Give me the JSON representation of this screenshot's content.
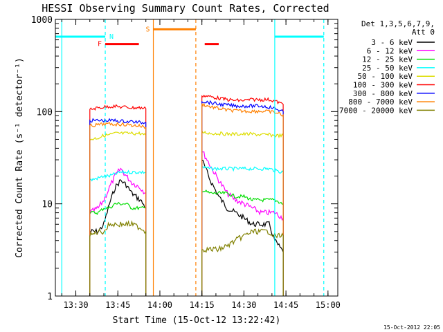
{
  "chart_data": {
    "type": "line",
    "title": "HESSI Observing Summary Count Rates, Corrected",
    "xlabel": "Start Time (15-Oct-12 13:22:42)",
    "ylabel": "Corrected Count Rate (s⁻¹ detector⁻¹)",
    "timestamp": "15-Oct-2012 22:05",
    "yscale": "log",
    "ylim": [
      1,
      1000
    ],
    "xlim": [
      "13:22:42",
      "15:03:30"
    ],
    "x_ticks": [
      "13:30",
      "13:45",
      "14:00",
      "14:15",
      "14:30",
      "14:45",
      "15:00"
    ],
    "y_ticks": [
      "1",
      "10",
      "100",
      "1000"
    ],
    "legend": {
      "placement": "right",
      "header": [
        "Det 1,3,5,6,7,9,",
        "Att 0"
      ],
      "entries": [
        {
          "label": "3 - 6 keV",
          "color": "#000000"
        },
        {
          "label": "6 - 12 keV",
          "color": "#ff00ff"
        },
        {
          "label": "12 - 25 keV",
          "color": "#00dd00"
        },
        {
          "label": "25 - 50 keV",
          "color": "#00ffff"
        },
        {
          "label": "50 - 100 keV",
          "color": "#dddd00"
        },
        {
          "label": "100 - 300 keV",
          "color": "#ff0000"
        },
        {
          "label": "300 - 800 keV",
          "color": "#0000ff"
        },
        {
          "label": "800 - 7000 keV",
          "color": "#ff8000"
        },
        {
          "label": "7000 - 20000 keV",
          "color": "#808000"
        }
      ]
    },
    "flag_bars": [
      {
        "label": "N",
        "color": "#00ffff",
        "y": 650,
        "spans": [
          [
            "13:22:42",
            "13:40:30"
          ],
          [
            "14:41:00",
            "14:58:30"
          ]
        ]
      },
      {
        "label": "S",
        "color": "#ff8000",
        "y": 780,
        "spans": [
          [
            "13:57:40",
            "14:12:50"
          ]
        ]
      },
      {
        "label": "F",
        "color": "#ff0000",
        "y": 540,
        "spans": [
          [
            "13:40:30",
            "13:52:30"
          ],
          [
            "14:16:00",
            "14:21:00"
          ]
        ]
      }
    ],
    "vertical_lines": [
      {
        "t": "13:25:00",
        "color": "#00ffff",
        "style": "solid"
      },
      {
        "t": "13:40:30",
        "color": "#00ffff",
        "style": "dashed"
      },
      {
        "t": "14:41:00",
        "color": "#00ffff",
        "style": "solid"
      },
      {
        "t": "14:58:30",
        "color": "#00ffff",
        "style": "dashed"
      },
      {
        "t": "13:57:40",
        "color": "#ff8000",
        "style": "solid"
      },
      {
        "t": "14:12:50",
        "color": "#ff8000",
        "style": "dashed"
      }
    ],
    "segments": [
      [
        "13:35:00",
        "13:55:00"
      ],
      [
        "14:15:00",
        "14:44:00"
      ]
    ],
    "series": [
      {
        "name": "3 - 6 keV",
        "color": "#000000",
        "points": [
          [
            [
              "13:35:00",
              5
            ],
            [
              "13:38:00",
              5
            ],
            [
              "13:40:00",
              6
            ],
            [
              "13:42:00",
              10
            ],
            [
              "13:44:00",
              15
            ],
            [
              "13:46:00",
              18
            ],
            [
              "13:48:00",
              16
            ],
            [
              "13:50:00",
              13
            ],
            [
              "13:53:00",
              11
            ],
            [
              "13:55:00",
              9
            ]
          ],
          [
            [
              "14:15:00",
              30
            ],
            [
              "14:18:00",
              18
            ],
            [
              "14:21:00",
              12
            ],
            [
              "14:24:00",
              9
            ],
            [
              "14:27:00",
              8
            ],
            [
              "14:30:00",
              7
            ],
            [
              "14:33:00",
              6
            ],
            [
              "14:36:00",
              6
            ],
            [
              "14:39:00",
              6
            ],
            [
              "14:41:00",
              4
            ],
            [
              "14:44:00",
              3
            ]
          ]
        ]
      },
      {
        "name": "6 - 12 keV",
        "color": "#ff00ff",
        "points": [
          [
            [
              "13:35:00",
              8
            ],
            [
              "13:38:00",
              9
            ],
            [
              "13:40:00",
              11
            ],
            [
              "13:42:00",
              15
            ],
            [
              "13:44:00",
              20
            ],
            [
              "13:46:00",
              24
            ],
            [
              "13:48:00",
              20
            ],
            [
              "13:50:00",
              17
            ],
            [
              "13:53:00",
              15
            ],
            [
              "13:55:00",
              13
            ]
          ],
          [
            [
              "14:15:00",
              38
            ],
            [
              "14:18:00",
              26
            ],
            [
              "14:21:00",
              18
            ],
            [
              "14:24:00",
              13
            ],
            [
              "14:27:00",
              11
            ],
            [
              "14:30:00",
              10
            ],
            [
              "14:33:00",
              9
            ],
            [
              "14:36:00",
              8
            ],
            [
              "14:39:00",
              8
            ],
            [
              "14:41:00",
              8
            ],
            [
              "14:44:00",
              7
            ]
          ]
        ]
      },
      {
        "name": "12 - 25 keV",
        "color": "#00dd00",
        "points": [
          [
            [
              "13:35:00",
              8
            ],
            [
              "13:38:00",
              8
            ],
            [
              "13:40:00",
              9
            ],
            [
              "13:42:00",
              9
            ],
            [
              "13:44:00",
              10
            ],
            [
              "13:46:00",
              10
            ],
            [
              "13:48:00",
              10
            ],
            [
              "13:50:00",
              9
            ],
            [
              "13:53:00",
              9
            ],
            [
              "13:55:00",
              9
            ]
          ],
          [
            [
              "14:15:00",
              14
            ],
            [
              "14:18:00",
              13
            ],
            [
              "14:21:00",
              13
            ],
            [
              "14:24:00",
              13
            ],
            [
              "14:27:00",
              12
            ],
            [
              "14:30:00",
              12
            ],
            [
              "14:33:00",
              11
            ],
            [
              "14:36:00",
              11
            ],
            [
              "14:39:00",
              11
            ],
            [
              "14:41:00",
              11
            ],
            [
              "14:44:00",
              10
            ]
          ]
        ]
      },
      {
        "name": "25 - 50 keV",
        "color": "#00ffff",
        "points": [
          [
            [
              "13:35:00",
              18
            ],
            [
              "13:38:00",
              19
            ],
            [
              "13:40:00",
              20
            ],
            [
              "13:42:00",
              20
            ],
            [
              "13:44:00",
              21
            ],
            [
              "13:46:00",
              22
            ],
            [
              "13:48:00",
              22
            ],
            [
              "13:50:00",
              22
            ],
            [
              "13:53:00",
              22
            ],
            [
              "13:55:00",
              22
            ]
          ],
          [
            [
              "14:15:00",
              25
            ],
            [
              "14:18:00",
              24
            ],
            [
              "14:21:00",
              24
            ],
            [
              "14:24:00",
              24
            ],
            [
              "14:27:00",
              24
            ],
            [
              "14:30:00",
              24
            ],
            [
              "14:33:00",
              24
            ],
            [
              "14:36:00",
              24
            ],
            [
              "14:39:00",
              24
            ],
            [
              "14:41:00",
              23
            ],
            [
              "14:44:00",
              22
            ]
          ]
        ]
      },
      {
        "name": "50 - 100 keV",
        "color": "#dddd00",
        "points": [
          [
            [
              "13:35:00",
              50
            ],
            [
              "13:38:00",
              52
            ],
            [
              "13:40:00",
              55
            ],
            [
              "13:42:00",
              56
            ],
            [
              "13:44:00",
              58
            ],
            [
              "13:46:00",
              58
            ],
            [
              "13:48:00",
              58
            ],
            [
              "13:50:00",
              58
            ],
            [
              "13:53:00",
              58
            ],
            [
              "13:55:00",
              55
            ]
          ],
          [
            [
              "14:15:00",
              60
            ],
            [
              "14:18:00",
              58
            ],
            [
              "14:21:00",
              58
            ],
            [
              "14:24:00",
              57
            ],
            [
              "14:27:00",
              57
            ],
            [
              "14:30:00",
              57
            ],
            [
              "14:33:00",
              57
            ],
            [
              "14:36:00",
              56
            ],
            [
              "14:39:00",
              56
            ],
            [
              "14:41:00",
              55
            ],
            [
              "14:44:00",
              55
            ]
          ]
        ]
      },
      {
        "name": "100 - 300 keV",
        "color": "#ff0000",
        "points": [
          [
            [
              "13:35:00",
              105
            ],
            [
              "13:38:00",
              110
            ],
            [
              "13:40:00",
              112
            ],
            [
              "13:42:00",
              114
            ],
            [
              "13:44:00",
              114
            ],
            [
              "13:46:00",
              112
            ],
            [
              "13:48:00",
              112
            ],
            [
              "13:50:00",
              110
            ],
            [
              "13:53:00",
              110
            ],
            [
              "13:55:00",
              108
            ]
          ],
          [
            [
              "14:15:00",
              150
            ],
            [
              "14:18:00",
              145
            ],
            [
              "14:21:00",
              140
            ],
            [
              "14:24:00",
              135
            ],
            [
              "14:27:00",
              132
            ],
            [
              "14:30:00",
              132
            ],
            [
              "14:33:00",
              135
            ],
            [
              "14:36:00",
              135
            ],
            [
              "14:39:00",
              135
            ],
            [
              "14:41:00",
              130
            ],
            [
              "14:44:00",
              120
            ]
          ]
        ]
      },
      {
        "name": "300 - 800 keV",
        "color": "#0000ff",
        "points": [
          [
            [
              "13:35:00",
              80
            ],
            [
              "13:38:00",
              80
            ],
            [
              "13:40:00",
              80
            ],
            [
              "13:42:00",
              80
            ],
            [
              "13:44:00",
              80
            ],
            [
              "13:46:00",
              79
            ],
            [
              "13:48:00",
              78
            ],
            [
              "13:50:00",
              78
            ],
            [
              "13:53:00",
              76
            ],
            [
              "13:55:00",
              76
            ]
          ],
          [
            [
              "14:15:00",
              130
            ],
            [
              "14:18:00",
              125
            ],
            [
              "14:21:00",
              120
            ],
            [
              "14:24:00",
              118
            ],
            [
              "14:27:00",
              115
            ],
            [
              "14:30:00",
              115
            ],
            [
              "14:33:00",
              115
            ],
            [
              "14:36:00",
              115
            ],
            [
              "14:39:00",
              112
            ],
            [
              "14:41:00",
              108
            ],
            [
              "14:44:00",
              100
            ]
          ]
        ]
      },
      {
        "name": "800 - 7000 keV",
        "color": "#ff8000",
        "points": [
          [
            [
              "13:35:00",
              70
            ],
            [
              "13:38:00",
              72
            ],
            [
              "13:40:00",
              73
            ],
            [
              "13:42:00",
              73
            ],
            [
              "13:44:00",
              73
            ],
            [
              "13:46:00",
              73
            ],
            [
              "13:48:00",
              72
            ],
            [
              "13:50:00",
              71
            ],
            [
              "13:53:00",
              70
            ],
            [
              "13:55:00",
              67
            ]
          ],
          [
            [
              "14:15:00",
              120
            ],
            [
              "14:18:00",
              113
            ],
            [
              "14:21:00",
              108
            ],
            [
              "14:24:00",
              104
            ],
            [
              "14:27:00",
              102
            ],
            [
              "14:30:00",
              101
            ],
            [
              "14:33:00",
              101
            ],
            [
              "14:36:00",
              101
            ],
            [
              "14:39:00",
              100
            ],
            [
              "14:41:00",
              98
            ],
            [
              "14:44:00",
              92
            ]
          ]
        ]
      },
      {
        "name": "7000 - 20000 keV",
        "color": "#808000",
        "points": [
          [
            [
              "13:35:00",
              4.5
            ],
            [
              "13:38:00",
              5
            ],
            [
              "13:40:00",
              5
            ],
            [
              "13:42:00",
              6
            ],
            [
              "13:44:00",
              6
            ],
            [
              "13:46:00",
              6
            ],
            [
              "13:48:00",
              6
            ],
            [
              "13:50:00",
              6
            ],
            [
              "13:53:00",
              5.5
            ],
            [
              "13:55:00",
              5
            ]
          ],
          [
            [
              "14:15:00",
              3.2
            ],
            [
              "14:18:00",
              3.2
            ],
            [
              "14:21:00",
              3.2
            ],
            [
              "14:24:00",
              3.5
            ],
            [
              "14:27:00",
              4
            ],
            [
              "14:30:00",
              4.5
            ],
            [
              "14:33:00",
              5
            ],
            [
              "14:36:00",
              5
            ],
            [
              "14:39:00",
              5
            ],
            [
              "14:41:00",
              4.5
            ],
            [
              "14:44:00",
              4.5
            ]
          ]
        ]
      }
    ]
  }
}
